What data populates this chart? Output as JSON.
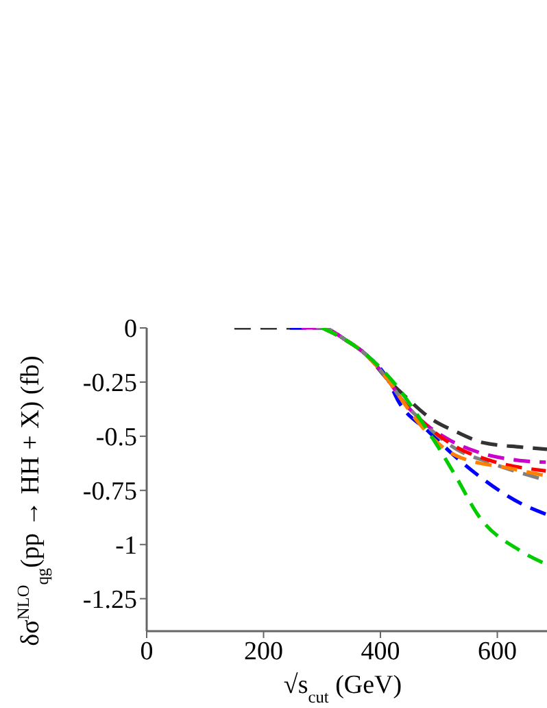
{
  "chart_data": {
    "type": "line",
    "xlabel": "√s$_{cut}$ (GeV)",
    "ylabel": "δσ$^{NLO}$$_{qg}$(pp → HH + X) (fb)",
    "xlim": [
      0,
      685
    ],
    "xticks": [
      0,
      200,
      400,
      600
    ],
    "ylim": [
      -1.4,
      0
    ],
    "yticks": [
      0,
      -0.25,
      -0.5,
      -0.75,
      -1,
      -1.25
    ],
    "line_style": "dashed",
    "marker": "none",
    "series": [
      {
        "color": "#333333",
        "x": [
          150,
          300,
          343,
          374,
          413,
          440,
          487,
          530,
          576,
          640,
          685
        ],
        "values": [
          0,
          0,
          -0.06,
          -0.12,
          -0.24,
          -0.31,
          -0.42,
          -0.48,
          -0.53,
          -0.55,
          -0.56
        ]
      },
      {
        "color": "#0000ff",
        "x": [
          245,
          300,
          343,
          374,
          413,
          429,
          483,
          562,
          640,
          683
        ],
        "values": [
          0,
          0,
          -0.06,
          -0.12,
          -0.24,
          -0.33,
          -0.48,
          -0.67,
          -0.81,
          -0.86
        ]
      },
      {
        "color": "#cc00cc",
        "x": [
          265,
          300,
          343,
          374,
          413,
          436,
          467,
          520,
          575,
          632,
          683
        ],
        "values": [
          0,
          0,
          -0.06,
          -0.12,
          -0.24,
          -0.33,
          -0.42,
          -0.52,
          -0.58,
          -0.61,
          -0.62
        ]
      },
      {
        "color": "#808080",
        "x": [
          290,
          300,
          343,
          374,
          413,
          436,
          467,
          530,
          585,
          679
        ],
        "values": [
          0,
          0,
          -0.06,
          -0.12,
          -0.24,
          -0.33,
          -0.42,
          -0.56,
          -0.62,
          -0.7
        ]
      },
      {
        "color": "#ff0000",
        "x": [
          300,
          343,
          374,
          413,
          436,
          467,
          530,
          585,
          683
        ],
        "values": [
          0,
          -0.06,
          -0.12,
          -0.24,
          -0.33,
          -0.42,
          -0.55,
          -0.61,
          -0.66
        ]
      },
      {
        "color": "#ff8000",
        "x": [
          300,
          343,
          374,
          413,
          436,
          460,
          530,
          625,
          679
        ],
        "values": [
          0,
          -0.06,
          -0.12,
          -0.24,
          -0.33,
          -0.42,
          -0.59,
          -0.65,
          -0.68
        ]
      },
      {
        "color": "#00cc00",
        "x": [
          300,
          343,
          374,
          419,
          480,
          530,
          566,
          640,
          683
        ],
        "values": [
          0,
          -0.06,
          -0.12,
          -0.24,
          -0.47,
          -0.69,
          -0.86,
          -1.03,
          -1.09
        ]
      }
    ]
  }
}
